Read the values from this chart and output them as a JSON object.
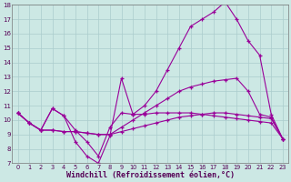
{
  "xlabel": "Windchill (Refroidissement éolien,°C)",
  "bg_color": "#cce8e4",
  "grid_color": "#aacccc",
  "line_color": "#990099",
  "xlim_min": -0.5,
  "xlim_max": 23.5,
  "ylim_min": 7,
  "ylim_max": 18,
  "xticks": [
    0,
    1,
    2,
    3,
    4,
    5,
    6,
    7,
    8,
    9,
    10,
    11,
    12,
    13,
    14,
    15,
    16,
    17,
    18,
    19,
    20,
    21,
    22,
    23
  ],
  "yticks": [
    7,
    8,
    9,
    10,
    11,
    12,
    13,
    14,
    15,
    16,
    17,
    18
  ],
  "series": [
    [
      10.5,
      9.8,
      9.3,
      9.3,
      9.2,
      9.2,
      9.1,
      9.0,
      9.0,
      9.2,
      9.4,
      9.6,
      9.8,
      10.0,
      10.2,
      10.3,
      10.4,
      10.5,
      10.5,
      10.4,
      10.3,
      10.2,
      10.1,
      8.7
    ],
    [
      10.5,
      9.8,
      9.3,
      9.3,
      9.2,
      9.2,
      9.1,
      9.0,
      9.0,
      9.5,
      10.0,
      10.5,
      11.0,
      11.5,
      12.0,
      12.3,
      12.5,
      12.7,
      12.8,
      12.9,
      12.0,
      10.4,
      10.2,
      8.7
    ],
    [
      10.5,
      9.8,
      9.3,
      10.8,
      10.3,
      9.3,
      8.5,
      7.5,
      9.5,
      10.5,
      10.4,
      11.0,
      12.0,
      13.5,
      15.0,
      16.5,
      17.0,
      17.5,
      18.2,
      17.0,
      15.5,
      14.5,
      10.4,
      8.7
    ],
    [
      10.5,
      9.8,
      9.3,
      10.8,
      10.3,
      8.5,
      7.5,
      7.0,
      8.9,
      12.9,
      10.4,
      10.4,
      10.5,
      10.5,
      10.5,
      10.5,
      10.4,
      10.3,
      10.2,
      10.1,
      10.0,
      9.9,
      9.8,
      8.7
    ]
  ]
}
